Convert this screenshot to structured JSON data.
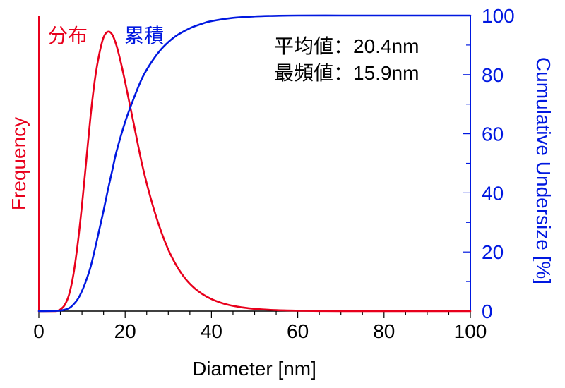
{
  "chart_data": {
    "type": "line",
    "xlabel": "Diameter [nm]",
    "ylabel_left": "Frequency",
    "ylabel_right": "Cumulative Undersize [%]",
    "xlim": [
      0,
      100
    ],
    "ylim_right": [
      0,
      100
    ],
    "x_ticks": [
      0,
      20,
      40,
      60,
      80,
      100
    ],
    "y_right_ticks": [
      0,
      20,
      40,
      60,
      80,
      100
    ],
    "legend": {
      "frequency_label": "分布",
      "cumulative_label": "累積"
    },
    "annotations": {
      "mean_label": "平均値：",
      "mean_value": "20.4nm",
      "mode_label": "最頻値：",
      "mode_value": "15.9nm"
    },
    "colors": {
      "frequency": "#e8001c",
      "cumulative": "#0018e0",
      "annotation": "#000000",
      "axis": "#000000"
    },
    "series": [
      {
        "name": "分布",
        "axis": "left",
        "x": [
          4,
          5,
          6,
          7,
          8,
          9,
          10,
          11,
          12,
          13,
          14,
          15,
          16,
          17,
          18,
          19,
          20,
          22,
          24,
          26,
          28,
          30,
          32,
          34,
          36,
          38,
          40,
          42,
          44,
          46,
          48,
          50,
          55,
          60,
          65,
          70,
          80,
          90,
          100
        ],
        "values": [
          0,
          0.6,
          2.2,
          5.9,
          13,
          24,
          38,
          54,
          70,
          83,
          92,
          98,
          100,
          99,
          95,
          89,
          82,
          67,
          52,
          40,
          30,
          22,
          16,
          11.5,
          8.3,
          6.0,
          4.3,
          3.1,
          2.2,
          1.6,
          1.15,
          0.8,
          0.35,
          0.15,
          0.05,
          0.02,
          0,
          0,
          0
        ]
      },
      {
        "name": "累積",
        "axis": "right",
        "x": [
          0,
          5,
          7,
          8,
          9,
          10,
          11,
          12,
          13,
          14,
          15,
          16,
          17,
          18,
          20,
          22,
          24,
          26,
          28,
          30,
          32,
          35,
          38,
          40,
          45,
          50,
          55,
          60,
          70,
          80,
          100
        ],
        "values": [
          0,
          0.2,
          1.0,
          2.2,
          4.0,
          6.8,
          10.5,
          15,
          21,
          27.5,
          34,
          41,
          47.5,
          54,
          64,
          72,
          79,
          84,
          88,
          91,
          93.3,
          95.7,
          97.3,
          98.1,
          99.2,
          99.7,
          99.9,
          100,
          100,
          100,
          100
        ]
      }
    ]
  }
}
